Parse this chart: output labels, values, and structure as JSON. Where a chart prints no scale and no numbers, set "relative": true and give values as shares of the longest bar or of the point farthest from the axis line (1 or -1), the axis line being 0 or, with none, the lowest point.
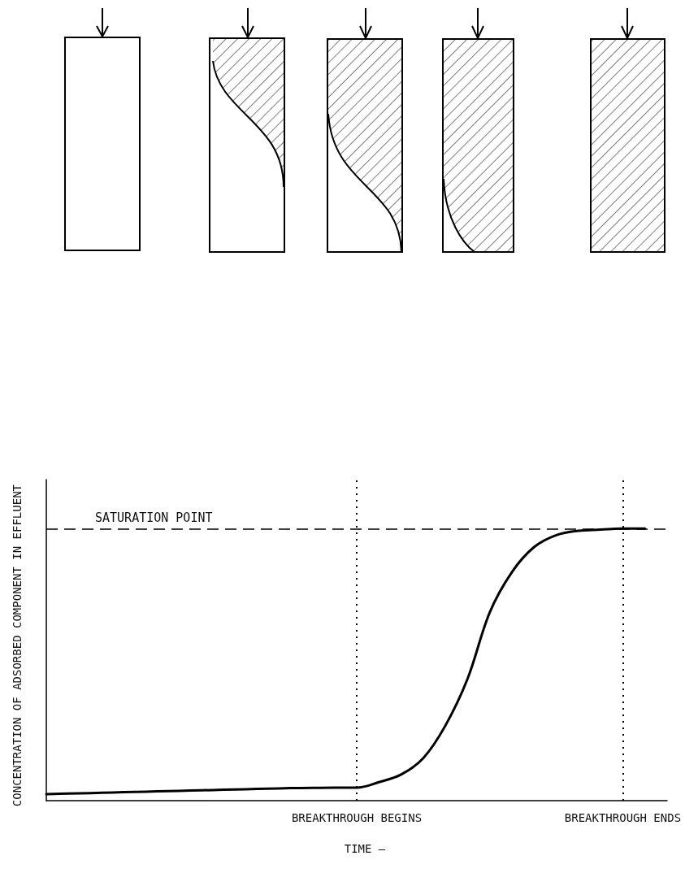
{
  "chart_data": {
    "type": "line",
    "relative": true,
    "xlabel": "TIME —",
    "ylabel": "CONCENTRATION OF ADSORBED COMPONENT IN EFFLUENT",
    "categories": [
      null,
      null,
      null,
      null,
      null,
      null,
      null,
      null,
      null,
      null,
      null,
      null,
      null,
      null,
      "BREAKTHROUGH BEGINS",
      null,
      null,
      null,
      null,
      null,
      null,
      null,
      null,
      null,
      null,
      null,
      "BREAKTHROUGH ENDS",
      null,
      null
    ],
    "series": [
      {
        "color": "#000000",
        "values": [
          0.024,
          0.026,
          0.028,
          0.03,
          0.032,
          0.034,
          0.036,
          0.038,
          0.04,
          0.042,
          0.044,
          0.046,
          0.047,
          0.048,
          0.048,
          0.068,
          0.096,
          0.156,
          0.276,
          0.448,
          0.692,
          0.84,
          0.932,
          0.976,
          0.992,
          0.996,
          1,
          1,
          null
        ]
      }
    ],
    "ref_lines": [
      {
        "axis": "y",
        "value": 1,
        "label": "SATURATION POINT",
        "line_style": "dashed",
        "color": "#000000"
      },
      {
        "axis": "x",
        "value": "BREAKTHROUGH BEGINS",
        "label": null,
        "line_style": "dotted",
        "color": "#000000"
      },
      {
        "axis": "x",
        "value": "BREAKTHROUGH ENDS",
        "label": null,
        "line_style": "dotted",
        "color": "#000000"
      }
    ],
    "marker": "none",
    "grid": false
  }
}
